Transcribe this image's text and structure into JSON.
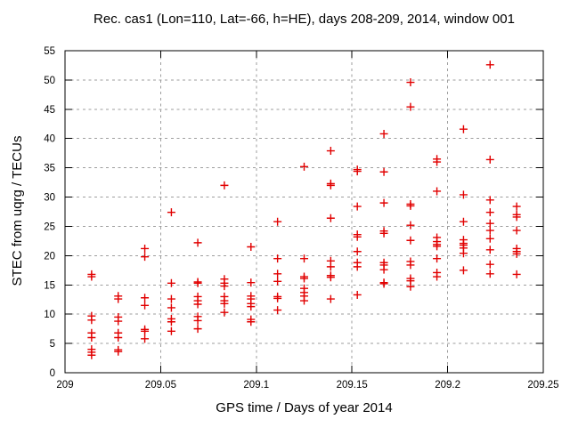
{
  "chart_data": {
    "type": "scatter",
    "title": "Rec. cas1 (Lon=110, Lat=-66, h=HE), days 208-209, 2014, window 001",
    "xlabel": "GPS time / Days of year 2014",
    "ylabel": "STEC from uqrg / TECUs",
    "xlim": [
      209,
      209.25
    ],
    "ylim": [
      0,
      55
    ],
    "xticks": {
      "values": [
        209,
        209.05,
        209.1,
        209.15,
        209.2,
        209.25
      ],
      "labels": [
        "209",
        "209.05",
        "209.1",
        "209.15",
        "209.2",
        "209.25"
      ]
    },
    "yticks": {
      "values": [
        0,
        5,
        10,
        15,
        20,
        25,
        30,
        35,
        40,
        45,
        50,
        55
      ],
      "labels": [
        "0",
        "5",
        "10",
        "15",
        "20",
        "25",
        "30",
        "35",
        "40",
        "45",
        "50",
        "55"
      ]
    },
    "grid": true,
    "legend": "none",
    "marker": "plus",
    "marker_color": "#e10000",
    "grid_color": "#9e9e9e",
    "axis_color": "#000000",
    "series": [
      {
        "points": [
          [
            209.0139,
            16.8
          ],
          [
            209.0139,
            16.4
          ],
          [
            209.0139,
            9.7
          ],
          [
            209.0139,
            9.0
          ],
          [
            209.0139,
            6.8
          ],
          [
            209.0139,
            6.0
          ],
          [
            209.0139,
            4.0
          ],
          [
            209.0139,
            3.5
          ],
          [
            209.0139,
            3.0
          ],
          [
            209.0278,
            13.1
          ],
          [
            209.0278,
            12.6
          ],
          [
            209.0278,
            9.5
          ],
          [
            209.0278,
            8.8
          ],
          [
            209.0278,
            6.8
          ],
          [
            209.0278,
            6.0
          ],
          [
            209.0278,
            3.9
          ],
          [
            209.0278,
            3.6
          ],
          [
            209.0417,
            21.2
          ],
          [
            209.0417,
            19.8
          ],
          [
            209.0417,
            12.8
          ],
          [
            209.0417,
            11.5
          ],
          [
            209.0417,
            7.4
          ],
          [
            209.0417,
            7.1
          ],
          [
            209.0417,
            5.8
          ],
          [
            209.0556,
            27.4
          ],
          [
            209.0556,
            15.3
          ],
          [
            209.0556,
            12.6
          ],
          [
            209.0556,
            11.1
          ],
          [
            209.0556,
            9.2
          ],
          [
            209.0556,
            8.7
          ],
          [
            209.0556,
            7.1
          ],
          [
            209.0694,
            22.2
          ],
          [
            209.0694,
            15.5
          ],
          [
            209.0694,
            15.3
          ],
          [
            209.0694,
            13.0
          ],
          [
            209.0694,
            12.3
          ],
          [
            209.0694,
            11.7
          ],
          [
            209.0694,
            9.6
          ],
          [
            209.0694,
            8.9
          ],
          [
            209.0694,
            7.5
          ],
          [
            209.0833,
            32.0
          ],
          [
            209.0833,
            16.0
          ],
          [
            209.0833,
            15.3
          ],
          [
            209.0833,
            14.8
          ],
          [
            209.0833,
            13.0
          ],
          [
            209.0833,
            12.3
          ],
          [
            209.0833,
            11.8
          ],
          [
            209.0833,
            10.3
          ],
          [
            209.0972,
            21.5
          ],
          [
            209.0972,
            15.4
          ],
          [
            209.0972,
            13.1
          ],
          [
            209.0972,
            12.6
          ],
          [
            209.0972,
            11.8
          ],
          [
            209.0972,
            11.3
          ],
          [
            209.0972,
            9.1
          ],
          [
            209.0972,
            8.7
          ],
          [
            209.1111,
            25.8
          ],
          [
            209.1111,
            19.5
          ],
          [
            209.1111,
            16.9
          ],
          [
            209.1111,
            15.6
          ],
          [
            209.1111,
            13.0
          ],
          [
            209.1111,
            12.7
          ],
          [
            209.1111,
            10.7
          ],
          [
            209.125,
            35.2
          ],
          [
            209.125,
            19.5
          ],
          [
            209.125,
            16.4
          ],
          [
            209.125,
            16.1
          ],
          [
            209.125,
            14.4
          ],
          [
            209.125,
            13.7
          ],
          [
            209.125,
            13.1
          ],
          [
            209.125,
            12.3
          ],
          [
            209.1389,
            37.9
          ],
          [
            209.1389,
            32.3
          ],
          [
            209.1389,
            32.0
          ],
          [
            209.1389,
            26.4
          ],
          [
            209.1389,
            19.1
          ],
          [
            209.1389,
            18.1
          ],
          [
            209.1389,
            16.6
          ],
          [
            209.1389,
            16.3
          ],
          [
            209.1389,
            12.6
          ],
          [
            209.1528,
            34.7
          ],
          [
            209.1528,
            34.4
          ],
          [
            209.1528,
            28.4
          ],
          [
            209.1528,
            23.6
          ],
          [
            209.1528,
            23.2
          ],
          [
            209.1528,
            20.7
          ],
          [
            209.1528,
            18.8
          ],
          [
            209.1528,
            18.1
          ],
          [
            209.1528,
            13.3
          ],
          [
            209.1667,
            40.8
          ],
          [
            209.1667,
            34.3
          ],
          [
            209.1667,
            29.0
          ],
          [
            209.1667,
            24.2
          ],
          [
            209.1667,
            23.8
          ],
          [
            209.1667,
            18.8
          ],
          [
            209.1667,
            18.4
          ],
          [
            209.1667,
            17.6
          ],
          [
            209.1667,
            15.4
          ],
          [
            209.1667,
            15.2
          ],
          [
            209.1806,
            49.6
          ],
          [
            209.1806,
            45.4
          ],
          [
            209.1806,
            28.8
          ],
          [
            209.1806,
            28.5
          ],
          [
            209.1806,
            25.2
          ],
          [
            209.1806,
            22.6
          ],
          [
            209.1806,
            19.0
          ],
          [
            209.1806,
            18.4
          ],
          [
            209.1806,
            16.1
          ],
          [
            209.1806,
            15.7
          ],
          [
            209.1806,
            14.7
          ],
          [
            209.1944,
            36.5
          ],
          [
            209.1944,
            36.0
          ],
          [
            209.1944,
            31.0
          ],
          [
            209.1944,
            23.1
          ],
          [
            209.1944,
            22.4
          ],
          [
            209.1944,
            21.9
          ],
          [
            209.1944,
            21.6
          ],
          [
            209.1944,
            19.5
          ],
          [
            209.1944,
            17.1
          ],
          [
            209.1944,
            16.4
          ],
          [
            209.2083,
            41.6
          ],
          [
            209.2083,
            30.4
          ],
          [
            209.2083,
            25.8
          ],
          [
            209.2083,
            22.7
          ],
          [
            209.2083,
            22.1
          ],
          [
            209.2083,
            21.8
          ],
          [
            209.2083,
            21.3
          ],
          [
            209.2083,
            20.4
          ],
          [
            209.2083,
            17.5
          ],
          [
            209.2222,
            52.6
          ],
          [
            209.2222,
            36.4
          ],
          [
            209.2222,
            29.5
          ],
          [
            209.2222,
            27.4
          ],
          [
            209.2222,
            25.5
          ],
          [
            209.2222,
            24.3
          ],
          [
            209.2222,
            22.9
          ],
          [
            209.2222,
            21.0
          ],
          [
            209.2222,
            18.5
          ],
          [
            209.2222,
            16.9
          ],
          [
            209.2361,
            28.4
          ],
          [
            209.2361,
            27.0
          ],
          [
            209.2361,
            26.6
          ],
          [
            209.2361,
            24.3
          ],
          [
            209.2361,
            21.2
          ],
          [
            209.2361,
            20.7
          ],
          [
            209.2361,
            20.3
          ],
          [
            209.2361,
            16.8
          ]
        ]
      }
    ]
  }
}
